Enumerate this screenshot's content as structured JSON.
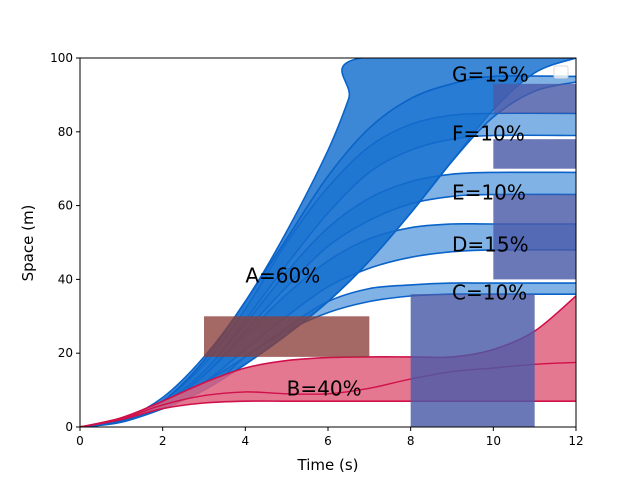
{
  "chart_data": {
    "type": "area",
    "title": "",
    "xlabel": "Time (s)",
    "ylabel": "Space (m)",
    "xlim": [
      0,
      12
    ],
    "ylim": [
      0,
      100
    ],
    "xticks": [
      0,
      2,
      4,
      6,
      8,
      10,
      12
    ],
    "yticks": [
      0,
      20,
      40,
      60,
      80,
      100
    ],
    "grid": false,
    "legend_placement": "top-right",
    "colors": {
      "blue_fill": "#1a73d0",
      "blue_edge": "#0a63c8",
      "red_fill": "#e0607e",
      "red_edge": "#d0104a",
      "box_blue": "#4a5aa8",
      "box_brown": "#8a3f3a"
    },
    "bands": [
      {
        "name": "A",
        "label": "A=60%",
        "label_at": [
          4.0,
          41
        ],
        "lower": [
          [
            0,
            0
          ],
          [
            1,
            1.5
          ],
          [
            2,
            5
          ],
          [
            3,
            10
          ],
          [
            4,
            17
          ],
          [
            5,
            25
          ],
          [
            6,
            34
          ],
          [
            7,
            45
          ],
          [
            8,
            58
          ],
          [
            9,
            72
          ],
          [
            10,
            86
          ],
          [
            11,
            96
          ],
          [
            12,
            100
          ]
        ],
        "upper": [
          [
            0,
            0
          ],
          [
            1,
            2
          ],
          [
            2,
            8
          ],
          [
            3,
            19
          ],
          [
            4,
            34
          ],
          [
            5,
            53
          ],
          [
            6,
            75
          ],
          [
            6.5,
            89
          ],
          [
            6.8,
            100
          ],
          [
            12,
            100
          ]
        ]
      },
      {
        "name": "C",
        "label": "C=10%",
        "label_at": [
          9.0,
          36.5
        ],
        "lower": [
          [
            0,
            0
          ],
          [
            1,
            1.3
          ],
          [
            2,
            5
          ],
          [
            3,
            10
          ],
          [
            3.5,
            14
          ],
          [
            4,
            19
          ],
          [
            5,
            26
          ],
          [
            6,
            31
          ],
          [
            7,
            34
          ],
          [
            8,
            35.5
          ],
          [
            9,
            36
          ],
          [
            10,
            36
          ],
          [
            12,
            36
          ]
        ],
        "upper": [
          [
            0,
            0
          ],
          [
            1,
            1.5
          ],
          [
            2,
            5.5
          ],
          [
            3,
            12
          ],
          [
            4,
            19
          ],
          [
            5,
            27
          ],
          [
            6,
            34
          ],
          [
            7,
            37.5
          ],
          [
            8,
            38.5
          ],
          [
            9,
            39
          ],
          [
            10,
            39
          ],
          [
            12,
            39
          ]
        ]
      },
      {
        "name": "D",
        "label": "D=15%",
        "label_at": [
          9.0,
          49.5
        ],
        "lower": [
          [
            0,
            0
          ],
          [
            1,
            1.4
          ],
          [
            2,
            5.5
          ],
          [
            3,
            12
          ],
          [
            4,
            21
          ],
          [
            5,
            30
          ],
          [
            6,
            38
          ],
          [
            7,
            43
          ],
          [
            8,
            46
          ],
          [
            9,
            47.5
          ],
          [
            10,
            48
          ],
          [
            12,
            48
          ]
        ],
        "upper": [
          [
            0,
            0
          ],
          [
            1,
            1.5
          ],
          [
            2,
            6
          ],
          [
            3,
            14
          ],
          [
            4,
            25
          ],
          [
            5,
            36
          ],
          [
            6,
            45
          ],
          [
            7,
            51
          ],
          [
            8,
            54
          ],
          [
            9,
            55
          ],
          [
            10,
            55
          ],
          [
            12,
            55
          ]
        ]
      },
      {
        "name": "E",
        "label": "E=10%",
        "label_at": [
          9.0,
          63.5
        ],
        "lower": [
          [
            0,
            0
          ],
          [
            1,
            1.5
          ],
          [
            2,
            6
          ],
          [
            3,
            14
          ],
          [
            4,
            26
          ],
          [
            5,
            38
          ],
          [
            6,
            49
          ],
          [
            7,
            56
          ],
          [
            8,
            60.5
          ],
          [
            9,
            62.5
          ],
          [
            10,
            63
          ],
          [
            12,
            63
          ]
        ],
        "upper": [
          [
            0,
            0
          ],
          [
            1,
            1.6
          ],
          [
            2,
            6.5
          ],
          [
            3,
            15
          ],
          [
            4,
            28
          ],
          [
            5,
            42
          ],
          [
            6,
            54
          ],
          [
            7,
            62
          ],
          [
            8,
            66.5
          ],
          [
            9,
            68.5
          ],
          [
            10,
            69
          ],
          [
            12,
            69
          ]
        ]
      },
      {
        "name": "F",
        "label": "F=10%",
        "label_at": [
          9.0,
          79.5
        ],
        "lower": [
          [
            0,
            0
          ],
          [
            1,
            1.6
          ],
          [
            2,
            6.5
          ],
          [
            3,
            15
          ],
          [
            4,
            29
          ],
          [
            5,
            44
          ],
          [
            6,
            58
          ],
          [
            7,
            69
          ],
          [
            8,
            75
          ],
          [
            9,
            78
          ],
          [
            10,
            79
          ],
          [
            12,
            79
          ]
        ],
        "upper": [
          [
            0,
            0
          ],
          [
            1,
            1.7
          ],
          [
            2,
            7
          ],
          [
            3,
            17
          ],
          [
            4,
            32
          ],
          [
            5,
            50
          ],
          [
            6,
            65
          ],
          [
            7,
            76
          ],
          [
            8,
            82
          ],
          [
            9,
            84.5
          ],
          [
            10,
            85
          ],
          [
            12,
            85
          ]
        ]
      },
      {
        "name": "G",
        "label": "G=15%",
        "label_at": [
          9.0,
          95.5
        ],
        "lower": [
          [
            0,
            0
          ],
          [
            1,
            1.5
          ],
          [
            2,
            5
          ],
          [
            3,
            10
          ],
          [
            4,
            17
          ],
          [
            5,
            25
          ],
          [
            6,
            34
          ],
          [
            7,
            45
          ],
          [
            8,
            58
          ],
          [
            9,
            72
          ],
          [
            10,
            84
          ],
          [
            11,
            91
          ],
          [
            12,
            93.5
          ]
        ],
        "upper": [
          [
            0,
            0
          ],
          [
            1,
            1.7
          ],
          [
            2,
            7
          ],
          [
            3,
            18
          ],
          [
            4,
            34
          ],
          [
            5,
            51
          ],
          [
            6,
            68
          ],
          [
            7,
            81
          ],
          [
            8,
            89
          ],
          [
            9,
            93
          ],
          [
            10,
            95
          ],
          [
            12,
            95
          ]
        ]
      },
      {
        "name": "B",
        "label": "B=40%",
        "label_at": [
          5.0,
          10.5
        ],
        "red": true,
        "lower": [
          [
            0,
            0
          ],
          [
            1,
            2
          ],
          [
            2,
            5
          ],
          [
            3,
            6.5
          ],
          [
            4,
            7
          ],
          [
            5,
            7
          ],
          [
            6,
            7
          ],
          [
            7,
            7
          ],
          [
            8,
            7
          ],
          [
            9,
            7
          ],
          [
            10,
            7
          ],
          [
            11,
            7
          ],
          [
            12,
            7
          ]
        ],
        "upper": [
          [
            0,
            0
          ],
          [
            1,
            2.5
          ],
          [
            2,
            7
          ],
          [
            3,
            12
          ],
          [
            4,
            16
          ],
          [
            5,
            18
          ],
          [
            6,
            18.8
          ],
          [
            7,
            19
          ],
          [
            8,
            19
          ],
          [
            9,
            19
          ],
          [
            10,
            21
          ],
          [
            11,
            26
          ],
          [
            12,
            35.5
          ]
        ]
      }
    ],
    "b_midline": [
      [
        0,
        0
      ],
      [
        1,
        2.2
      ],
      [
        2,
        6
      ],
      [
        3,
        8.5
      ],
      [
        4,
        9.5
      ],
      [
        5,
        9
      ],
      [
        6,
        9
      ],
      [
        7,
        10.5
      ],
      [
        8,
        13
      ],
      [
        9,
        15
      ],
      [
        10,
        16
      ],
      [
        11,
        17
      ],
      [
        12,
        17.5
      ]
    ],
    "boxes": [
      {
        "x": [
          3,
          7
        ],
        "y": [
          19,
          30
        ],
        "kind": "brown"
      },
      {
        "x": [
          8,
          11
        ],
        "y": [
          0,
          36
        ],
        "kind": "blue"
      },
      {
        "x": [
          10,
          12
        ],
        "y": [
          40,
          63
        ],
        "kind": "blue"
      },
      {
        "x": [
          10,
          12
        ],
        "y": [
          70,
          78
        ],
        "kind": "blue"
      },
      {
        "x": [
          10,
          12
        ],
        "y": [
          85,
          93
        ],
        "kind": "blue"
      }
    ]
  }
}
